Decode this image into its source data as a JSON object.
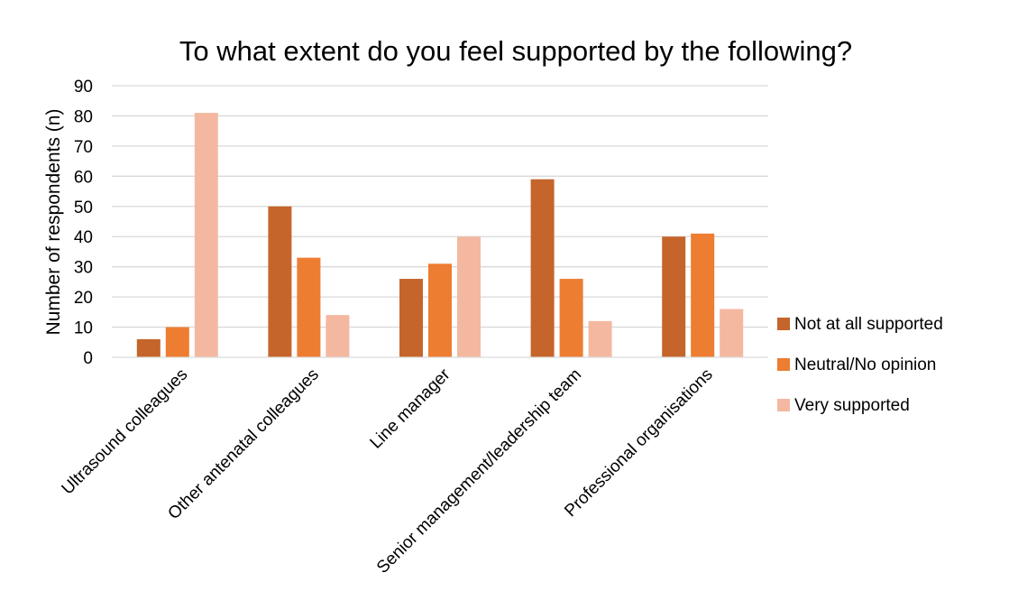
{
  "chart_data": {
    "type": "bar",
    "title": "To what extent do you feel supported by the following?",
    "xlabel": "",
    "ylabel": "Number of respondents (n)",
    "ylim": [
      0,
      90
    ],
    "yticks": [
      0,
      10,
      20,
      30,
      40,
      50,
      60,
      70,
      80,
      90
    ],
    "grid": true,
    "legend_position": "right",
    "categories": [
      "Ultrasound colleagues",
      "Other antenatal colleagues",
      "Line manager",
      "Senior management/leadership team",
      "Professional organisations"
    ],
    "series": [
      {
        "name": "Not at all supported",
        "values": [
          6,
          50,
          26,
          59,
          40
        ],
        "color": "#C5652B"
      },
      {
        "name": "Neutral/No opinion",
        "values": [
          10,
          33,
          31,
          26,
          41
        ],
        "color": "#ED7D31"
      },
      {
        "name": "Very supported",
        "values": [
          81,
          14,
          40,
          12,
          16
        ],
        "color": "#F4B8A0"
      }
    ]
  }
}
